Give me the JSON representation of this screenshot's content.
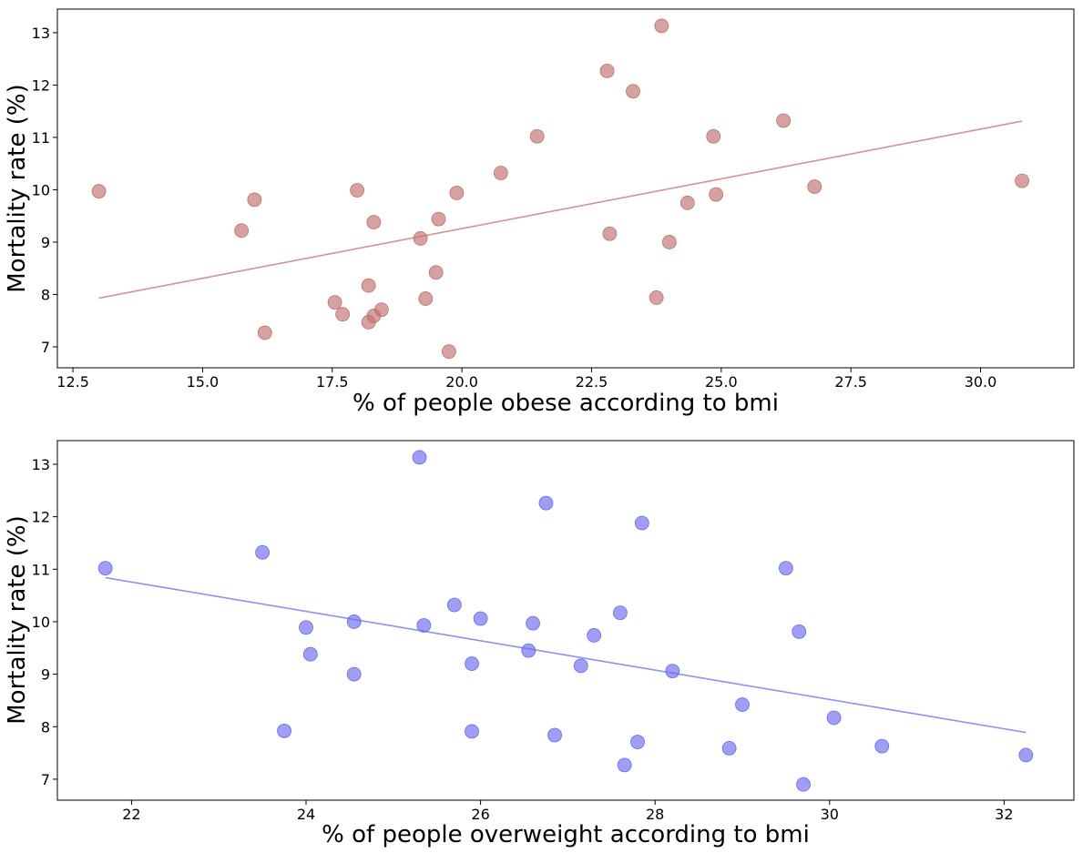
{
  "chart_data": [
    {
      "type": "scatter",
      "xlabel": "% of people obese according to bmi",
      "ylabel": "Mortality rate (%)",
      "xlim": [
        12.2,
        31.8
      ],
      "ylim": [
        6.6,
        13.45
      ],
      "xticks": [
        12.5,
        15.0,
        17.5,
        20.0,
        22.5,
        25.0,
        27.5,
        30.0
      ],
      "xtick_labels": [
        "12.5",
        "15.0",
        "17.5",
        "20.0",
        "22.5",
        "25.0",
        "27.5",
        "30.0"
      ],
      "yticks": [
        7,
        8,
        9,
        10,
        11,
        12,
        13
      ],
      "ytick_labels": [
        "7",
        "8",
        "9",
        "10",
        "11",
        "12",
        "13"
      ],
      "color": "#c0706c",
      "grid": false,
      "points": [
        [
          13.0,
          9.97
        ],
        [
          15.75,
          9.22
        ],
        [
          16.0,
          9.81
        ],
        [
          16.2,
          7.27
        ],
        [
          17.55,
          7.85
        ],
        [
          17.7,
          7.62
        ],
        [
          17.98,
          9.99
        ],
        [
          18.2,
          8.17
        ],
        [
          18.2,
          7.47
        ],
        [
          18.3,
          9.38
        ],
        [
          18.3,
          7.59
        ],
        [
          18.45,
          7.71
        ],
        [
          19.2,
          9.07
        ],
        [
          19.3,
          7.92
        ],
        [
          19.5,
          8.42
        ],
        [
          19.55,
          9.44
        ],
        [
          19.75,
          6.91
        ],
        [
          19.9,
          9.94
        ],
        [
          20.75,
          10.32
        ],
        [
          21.45,
          11.02
        ],
        [
          22.8,
          12.27
        ],
        [
          22.85,
          9.16
        ],
        [
          23.3,
          11.88
        ],
        [
          23.75,
          7.94
        ],
        [
          23.85,
          13.13
        ],
        [
          24.0,
          9.0
        ],
        [
          24.35,
          9.75
        ],
        [
          24.85,
          11.02
        ],
        [
          24.9,
          9.91
        ],
        [
          26.2,
          11.32
        ],
        [
          26.8,
          10.06
        ],
        [
          30.8,
          10.17
        ]
      ],
      "trendline": [
        [
          13.0,
          7.93
        ],
        [
          30.8,
          11.31
        ]
      ]
    },
    {
      "type": "scatter",
      "xlabel": "% of people overweight according to bmi",
      "ylabel": "Mortality rate (%)",
      "xlim": [
        21.15,
        32.8
      ],
      "ylim": [
        6.6,
        13.45
      ],
      "xticks": [
        22,
        24,
        26,
        28,
        30,
        32
      ],
      "xtick_labels": [
        "22",
        "24",
        "26",
        "28",
        "30",
        "32"
      ],
      "yticks": [
        7,
        8,
        9,
        10,
        11,
        12,
        13
      ],
      "ytick_labels": [
        "7",
        "8",
        "9",
        "10",
        "11",
        "12",
        "13"
      ],
      "color": "#6a6af0",
      "grid": false,
      "points": [
        [
          21.7,
          11.02
        ],
        [
          23.5,
          11.32
        ],
        [
          23.75,
          7.92
        ],
        [
          24.0,
          9.89
        ],
        [
          24.05,
          9.38
        ],
        [
          24.55,
          10.0
        ],
        [
          24.55,
          9.0
        ],
        [
          25.3,
          13.13
        ],
        [
          25.35,
          9.93
        ],
        [
          25.7,
          10.32
        ],
        [
          25.9,
          9.2
        ],
        [
          25.9,
          7.91
        ],
        [
          26.0,
          10.06
        ],
        [
          26.55,
          9.45
        ],
        [
          26.6,
          9.97
        ],
        [
          26.75,
          12.26
        ],
        [
          26.85,
          7.84
        ],
        [
          27.15,
          9.16
        ],
        [
          27.3,
          9.74
        ],
        [
          27.6,
          10.17
        ],
        [
          27.65,
          7.27
        ],
        [
          27.8,
          7.71
        ],
        [
          27.85,
          11.88
        ],
        [
          28.2,
          9.06
        ],
        [
          28.85,
          7.59
        ],
        [
          29.0,
          8.42
        ],
        [
          29.5,
          11.02
        ],
        [
          29.65,
          9.81
        ],
        [
          29.7,
          6.9
        ],
        [
          30.05,
          8.17
        ],
        [
          30.6,
          7.63
        ],
        [
          32.25,
          7.46
        ]
      ],
      "trendline": [
        [
          21.7,
          10.84
        ],
        [
          32.25,
          7.89
        ]
      ]
    }
  ]
}
